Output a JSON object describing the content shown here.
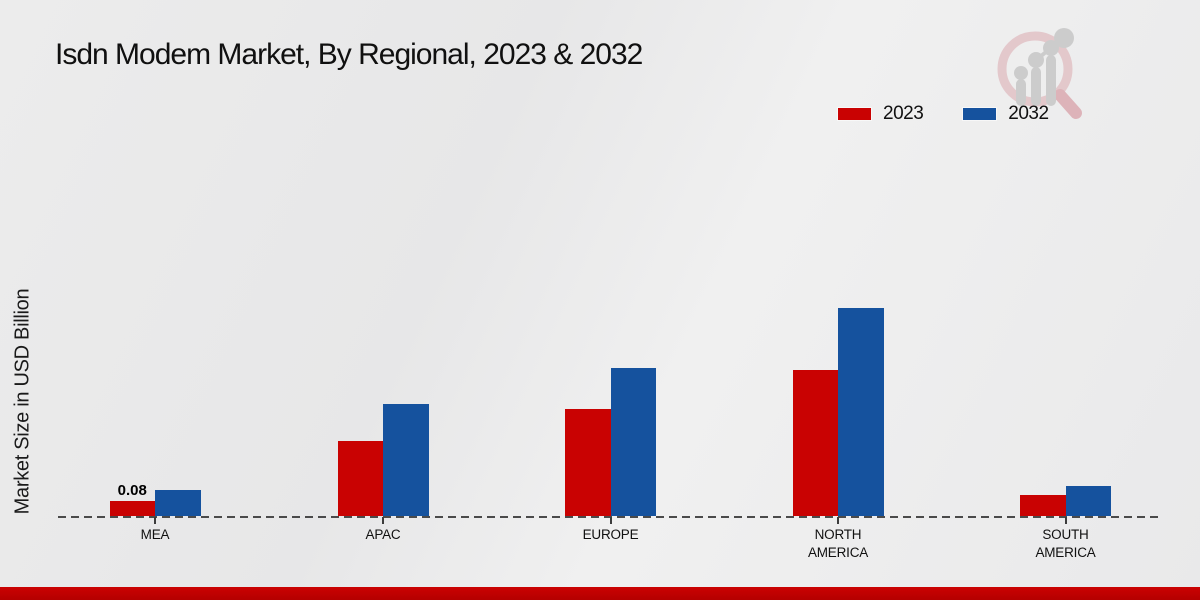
{
  "chart_data": {
    "type": "bar",
    "title": "Isdn Modem Market, By Regional, 2023 & 2032",
    "ylabel": "Market Size in USD Billion",
    "xlabel": "",
    "categories": [
      "MEA",
      "APAC",
      "EUROPE",
      "NORTH AMERICA",
      "SOUTH AMERICA"
    ],
    "series": [
      {
        "name": "2023",
        "color": "#c90202",
        "values": [
          0.08,
          0.4,
          0.57,
          0.78,
          0.11
        ]
      },
      {
        "name": "2032",
        "color": "#15529e",
        "values": [
          0.14,
          0.6,
          0.79,
          1.11,
          0.16
        ]
      }
    ],
    "data_labels": [
      {
        "series": "2023",
        "category": "MEA",
        "text": "0.08"
      }
    ],
    "ylim": [
      0,
      1.2
    ],
    "grid": false,
    "y_axis_ticks_visible": false,
    "legend_position": "top-right",
    "baseline_style": "dashed"
  },
  "branding": {
    "logo": "magnifier-growth-chart-watermark"
  },
  "accents": {
    "bottom_bar_color": "#c00000"
  }
}
